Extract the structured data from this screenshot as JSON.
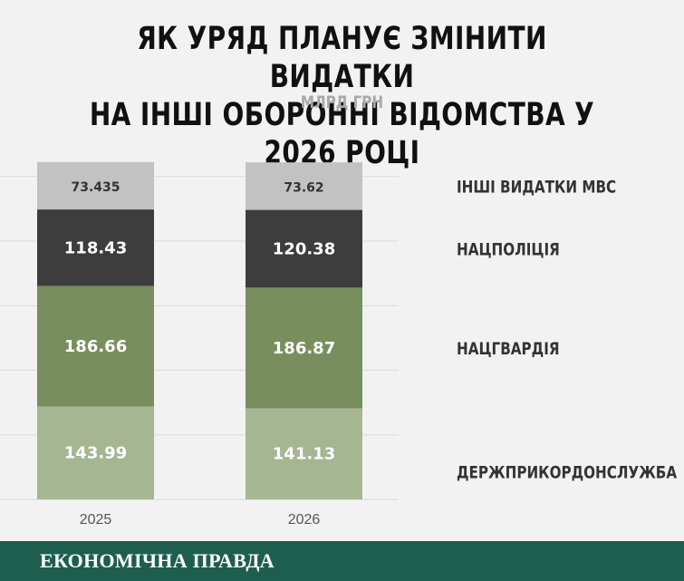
{
  "header": {
    "title_line1": "ЯК УРЯД ПЛАНУЄ ЗМІНИТИ ВИДАТКИ",
    "title_line2": "НА ІНШІ ОБОРОННІ ВІДОМСТВА У 2026 РОЦІ",
    "subtitle": "МЛРД ГРН"
  },
  "chart_data": {
    "type": "bar",
    "stacked": true,
    "categories": [
      "2025",
      "2026"
    ],
    "series": [
      {
        "name": "ДЕРЖПРИКОРДОНСЛУЖБА",
        "values": [
          143.99,
          141.13
        ],
        "color": "#a6b592",
        "label_color": "#ffffff"
      },
      {
        "name": "НАЦГВАРДІЯ",
        "values": [
          186.66,
          186.87
        ],
        "color": "#788e5e",
        "label_color": "#ffffff"
      },
      {
        "name": "НАЦПОЛІЦІЯ",
        "values": [
          118.43,
          120.38
        ],
        "color": "#3d3d3d",
        "label_color": "#ffffff"
      },
      {
        "name": "ІНШІ ВИДАТКИ МВС",
        "values": [
          73.435,
          73.62
        ],
        "color": "#c2c2c2",
        "label_color": "#333333"
      }
    ],
    "data_labels": [
      [
        "143.99",
        "186.66",
        "118.43",
        "73.435"
      ],
      [
        "141.13",
        "186.87",
        "120.38",
        "73.62"
      ]
    ],
    "ylim": [
      0,
      525
    ],
    "grid": true,
    "legend": "right, inline labels",
    "title": "ЯК УРЯД ПЛАНУЄ ЗМІНИТИ ВИДАТКИ НА ІНШІ ОБОРОННІ ВІДОМСТВА У 2026 РОЦІ",
    "subtitle": "МЛРД ГРН"
  },
  "footer": {
    "brand": "ЕКОНОМІЧНА ПРАВДА",
    "background": "#1e5e4f"
  }
}
